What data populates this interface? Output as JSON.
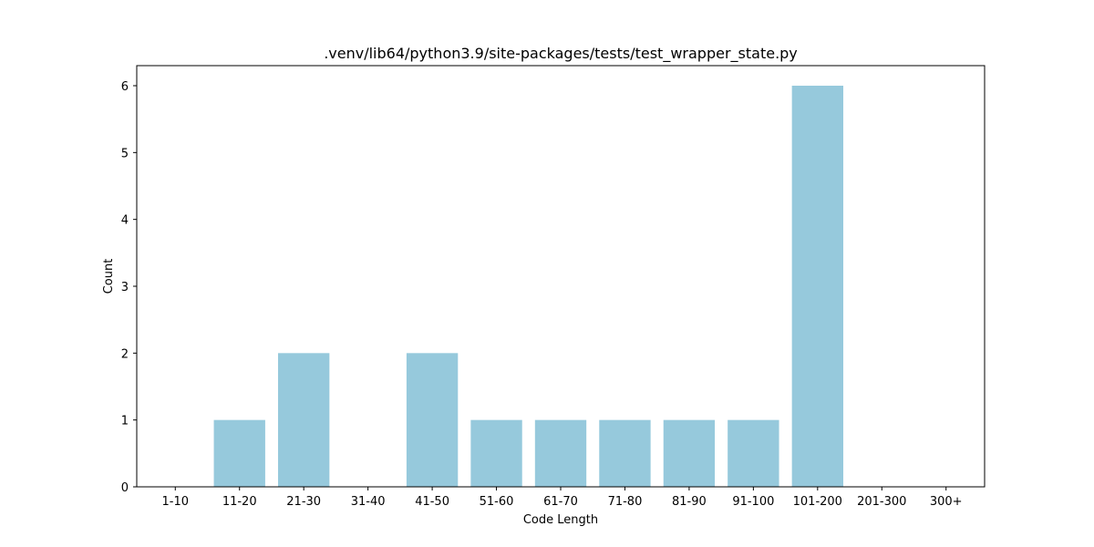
{
  "chart_data": {
    "type": "bar",
    "title": ".venv/lib64/python3.9/site-packages/tests/test_wrapper_state.py",
    "xlabel": "Code Length",
    "ylabel": "Count",
    "categories": [
      "1-10",
      "11-20",
      "21-30",
      "31-40",
      "41-50",
      "51-60",
      "61-70",
      "71-80",
      "81-90",
      "91-100",
      "101-200",
      "201-300",
      "300+"
    ],
    "values": [
      0,
      1,
      2,
      0,
      2,
      1,
      1,
      1,
      1,
      1,
      6,
      0,
      0
    ],
    "yticks": [
      "0",
      "1",
      "2",
      "3",
      "4",
      "5",
      "6"
    ],
    "ylim": [
      0,
      6.3
    ],
    "grid": false,
    "bar_color": "#96c9dc"
  }
}
